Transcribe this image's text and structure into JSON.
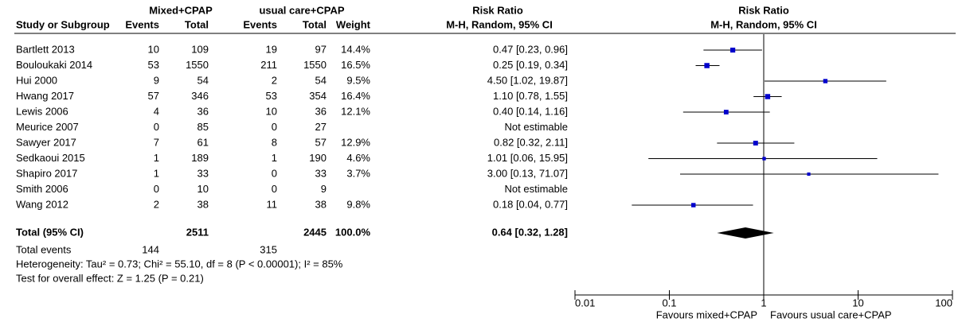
{
  "chart_data": {
    "type": "forest",
    "group_headers": [
      "Mixed+CPAP",
      "usual care+CPAP",
      "Risk Ratio",
      "Risk Ratio"
    ],
    "column_headers": [
      "Study or Subgroup",
      "Events",
      "Total",
      "Events",
      "Total",
      "Weight",
      "M-H, Random, 95% CI",
      "M-H, Random, 95% CI"
    ],
    "studies": [
      {
        "name": "Bartlett 2013",
        "events1": 10,
        "total1": 109,
        "events2": 19,
        "total2": 97,
        "weight": 14.4,
        "weight_label": "14.4%",
        "rr": 0.47,
        "lower": 0.23,
        "upper": 0.96,
        "ci_label": "0.47 [0.23, 0.96]"
      },
      {
        "name": "Bouloukaki 2014",
        "events1": 53,
        "total1": 1550,
        "events2": 211,
        "total2": 1550,
        "weight": 16.5,
        "weight_label": "16.5%",
        "rr": 0.25,
        "lower": 0.19,
        "upper": 0.34,
        "ci_label": "0.25 [0.19, 0.34]"
      },
      {
        "name": "Hui 2000",
        "events1": 9,
        "total1": 54,
        "events2": 2,
        "total2": 54,
        "weight": 9.5,
        "weight_label": "9.5%",
        "rr": 4.5,
        "lower": 1.02,
        "upper": 19.87,
        "ci_label": "4.50 [1.02, 19.87]"
      },
      {
        "name": "Hwang 2017",
        "events1": 57,
        "total1": 346,
        "events2": 53,
        "total2": 354,
        "weight": 16.4,
        "weight_label": "16.4%",
        "rr": 1.1,
        "lower": 0.78,
        "upper": 1.55,
        "ci_label": "1.10 [0.78, 1.55]"
      },
      {
        "name": "Lewis 2006",
        "events1": 4,
        "total1": 36,
        "events2": 10,
        "total2": 36,
        "weight": 12.1,
        "weight_label": "12.1%",
        "rr": 0.4,
        "lower": 0.14,
        "upper": 1.16,
        "ci_label": "0.40 [0.14, 1.16]"
      },
      {
        "name": "Meurice 2007",
        "events1": 0,
        "total1": 85,
        "events2": 0,
        "total2": 27,
        "weight": null,
        "weight_label": null,
        "rr": null,
        "lower": null,
        "upper": null,
        "ci_label": "Not estimable"
      },
      {
        "name": "Sawyer 2017",
        "events1": 7,
        "total1": 61,
        "events2": 8,
        "total2": 57,
        "weight": 12.9,
        "weight_label": "12.9%",
        "rr": 0.82,
        "lower": 0.32,
        "upper": 2.11,
        "ci_label": "0.82 [0.32, 2.11]"
      },
      {
        "name": "Sedkaoui 2015",
        "events1": 1,
        "total1": 189,
        "events2": 1,
        "total2": 190,
        "weight": 4.6,
        "weight_label": "4.6%",
        "rr": 1.01,
        "lower": 0.06,
        "upper": 15.95,
        "ci_label": "1.01 [0.06, 15.95]"
      },
      {
        "name": "Shapiro 2017",
        "events1": 1,
        "total1": 33,
        "events2": 0,
        "total2": 33,
        "weight": 3.7,
        "weight_label": "3.7%",
        "rr": 3.0,
        "lower": 0.13,
        "upper": 71.07,
        "ci_label": "3.00 [0.13, 71.07]"
      },
      {
        "name": "Smith 2006",
        "events1": 0,
        "total1": 10,
        "events2": 0,
        "total2": 9,
        "weight": null,
        "weight_label": null,
        "rr": null,
        "lower": null,
        "upper": null,
        "ci_label": "Not estimable"
      },
      {
        "name": "Wang 2012",
        "events1": 2,
        "total1": 38,
        "events2": 11,
        "total2": 38,
        "weight": 9.8,
        "weight_label": "9.8%",
        "rr": 0.18,
        "lower": 0.04,
        "upper": 0.77,
        "ci_label": "0.18 [0.04, 0.77]"
      }
    ],
    "total": {
      "name": "Total (95% CI)",
      "total1": 2511,
      "total2": 2445,
      "weight_label": "100.0%",
      "rr": 0.64,
      "lower": 0.32,
      "upper": 1.28,
      "ci_label": "0.64 [0.32, 1.28]"
    },
    "total_events": {
      "name": "Total events",
      "events1": 144,
      "events2": 315
    },
    "heterogeneity": "Heterogeneity: Tau² = 0.73; Chi² = 55.10, df = 8 (P < 0.00001); I² = 85%",
    "overall_effect": "Test for overall effect: Z = 1.25 (P = 0.21)",
    "log_scale": true,
    "xlim": [
      0.01,
      100
    ],
    "xticks": [
      0.01,
      0.1,
      1,
      10,
      100
    ],
    "xlabels": [
      "Favours mixed+CPAP",
      "Favours usual care+CPAP"
    ],
    "marker_color": "#0000cc",
    "diamond_color": "#000000"
  }
}
